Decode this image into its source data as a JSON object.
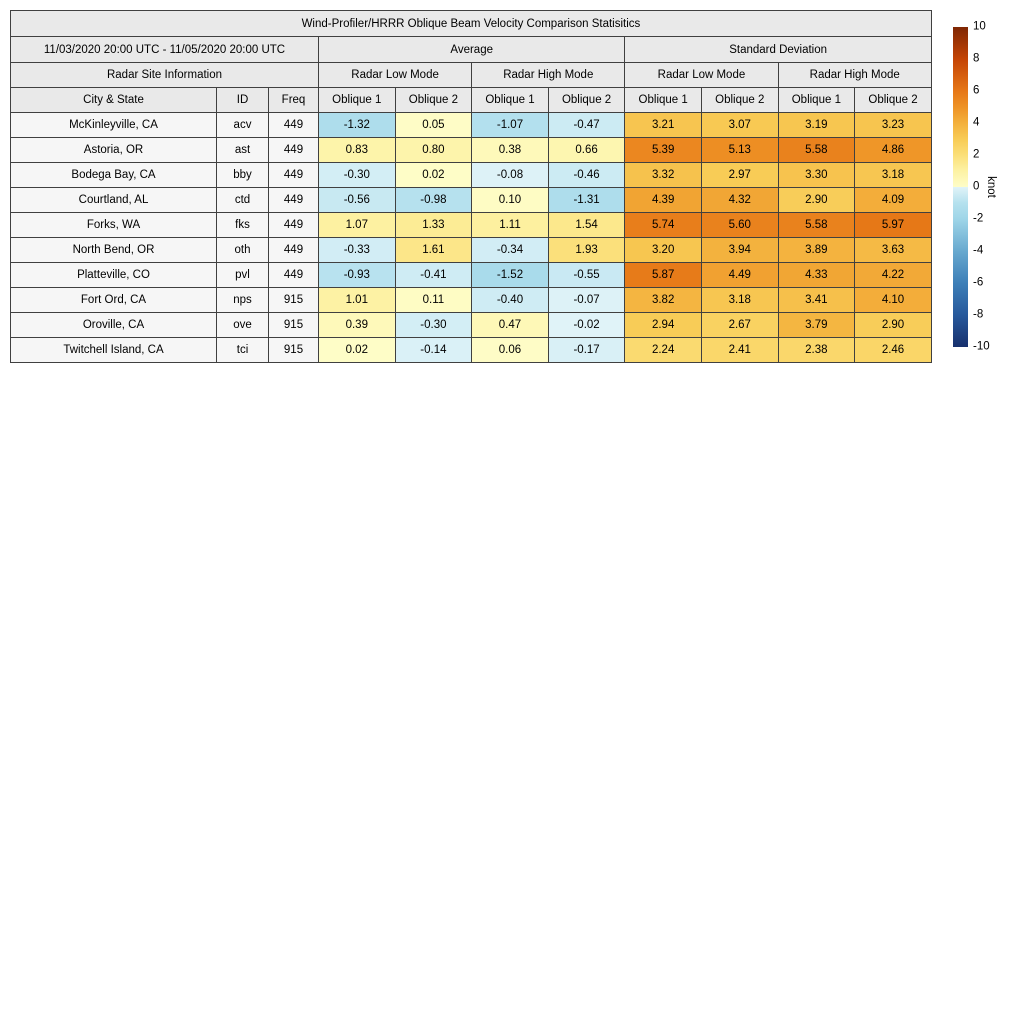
{
  "title": "Wind-Profiler/HRRR Oblique Beam Velocity Comparison Statisitics",
  "header": {
    "date_range": "11/03/2020 20:00 UTC - 11/05/2020 20:00 UTC",
    "group_average": "Average",
    "group_std": "Standard Deviation",
    "radar_site_info": "Radar Site Information",
    "low_mode": "Radar Low Mode",
    "high_mode": "Radar High Mode",
    "col_city": "City & State",
    "col_id": "ID",
    "col_freq": "Freq",
    "col_oblique1": "Oblique 1",
    "col_oblique2": "Oblique 2"
  },
  "chart_data": {
    "type": "heatmap_table",
    "title": "Wind-Profiler/HRRR Oblique Beam Velocity Comparison Statisitics",
    "value_columns": [
      "avg_low_oblique1",
      "avg_low_oblique2",
      "avg_high_oblique1",
      "avg_high_oblique2",
      "std_low_oblique1",
      "std_low_oblique2",
      "std_high_oblique1",
      "std_high_oblique2"
    ],
    "rows": [
      {
        "city": "McKinleyville, CA",
        "id": "acv",
        "freq": "449",
        "values": [
          -1.32,
          0.05,
          -1.07,
          -0.47,
          3.21,
          3.07,
          3.19,
          3.23
        ]
      },
      {
        "city": "Astoria, OR",
        "id": "ast",
        "freq": "449",
        "values": [
          0.83,
          0.8,
          0.38,
          0.66,
          5.39,
          5.13,
          5.58,
          4.86
        ]
      },
      {
        "city": "Bodega Bay, CA",
        "id": "bby",
        "freq": "449",
        "values": [
          -0.3,
          0.02,
          -0.08,
          -0.46,
          3.32,
          2.97,
          3.3,
          3.18
        ]
      },
      {
        "city": "Courtland, AL",
        "id": "ctd",
        "freq": "449",
        "values": [
          -0.56,
          -0.98,
          0.1,
          -1.31,
          4.39,
          4.32,
          2.9,
          4.09
        ]
      },
      {
        "city": "Forks, WA",
        "id": "fks",
        "freq": "449",
        "values": [
          1.07,
          1.33,
          1.11,
          1.54,
          5.74,
          5.6,
          5.58,
          5.97
        ]
      },
      {
        "city": "North Bend, OR",
        "id": "oth",
        "freq": "449",
        "values": [
          -0.33,
          1.61,
          -0.34,
          1.93,
          3.2,
          3.94,
          3.89,
          3.63
        ]
      },
      {
        "city": "Platteville, CO",
        "id": "pvl",
        "freq": "449",
        "values": [
          -0.93,
          -0.41,
          -1.52,
          -0.55,
          5.87,
          4.49,
          4.33,
          4.22
        ]
      },
      {
        "city": "Fort Ord, CA",
        "id": "nps",
        "freq": "915",
        "values": [
          1.01,
          0.11,
          -0.4,
          -0.07,
          3.82,
          3.18,
          3.41,
          4.1
        ]
      },
      {
        "city": "Oroville, CA",
        "id": "ove",
        "freq": "915",
        "values": [
          0.39,
          -0.3,
          0.47,
          -0.02,
          2.94,
          2.67,
          3.79,
          2.9
        ]
      },
      {
        "city": "Twitchell Island, CA",
        "id": "tci",
        "freq": "915",
        "values": [
          0.02,
          -0.14,
          0.06,
          -0.17,
          2.24,
          2.41,
          2.38,
          2.46
        ]
      }
    ],
    "colorbar": {
      "unit": "knot",
      "min": -10,
      "max": 10,
      "ticks": [
        10,
        8,
        6,
        4,
        2,
        0,
        -2,
        -4,
        -6,
        -8,
        -10
      ]
    }
  },
  "colors": {
    "border": "#404040",
    "header_bg": "#e9e9e9",
    "label_bg": "#f6f6f6",
    "colormap_stops": [
      [
        -10,
        "#17306d"
      ],
      [
        -8,
        "#27599c"
      ],
      [
        -6,
        "#3d7fb8"
      ],
      [
        -4,
        "#68a9cf"
      ],
      [
        -2,
        "#9ed5e8"
      ],
      [
        -1,
        "#b5e1ee"
      ],
      [
        -0.01,
        "#e0f3f8"
      ],
      [
        0,
        "#fefdc8"
      ],
      [
        1,
        "#fdf2a4"
      ],
      [
        2,
        "#fbdf78"
      ],
      [
        3,
        "#f8cb55"
      ],
      [
        4,
        "#f3b03c"
      ],
      [
        5,
        "#ee9225"
      ],
      [
        6,
        "#e67717"
      ],
      [
        8,
        "#c44405"
      ],
      [
        10,
        "#7f2704"
      ]
    ]
  }
}
